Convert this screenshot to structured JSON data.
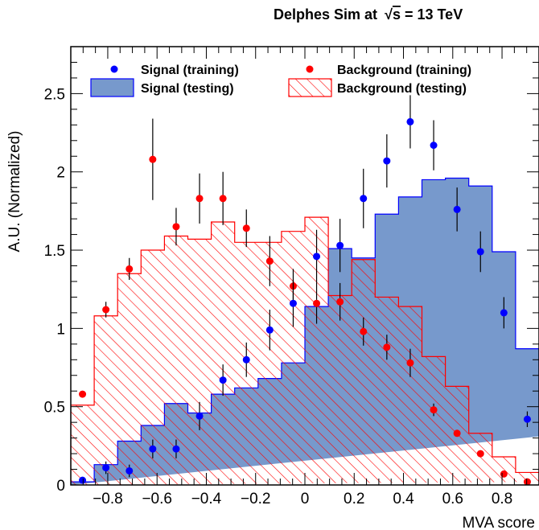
{
  "chart_data": {
    "type": "histogram",
    "title": "Delphes Sim at",
    "title_energy": "= 13 TeV",
    "xlabel": "MVA score",
    "ylabel": "A.U. (Normalized)",
    "xlim": [
      -0.95,
      0.95
    ],
    "ylim": [
      0,
      2.8
    ],
    "x_ticks": [
      -0.8,
      -0.6,
      -0.4,
      -0.2,
      0,
      0.2,
      0.4,
      0.6,
      0.8
    ],
    "x_tick_labels": [
      "−0.8",
      "−0.6",
      "−0.4",
      "−0.2",
      "0",
      "0.2",
      "0.4",
      "0.6",
      "0.8"
    ],
    "y_ticks": [
      0,
      0.5,
      1,
      1.5,
      2,
      2.5
    ],
    "y_tick_labels": [
      "0",
      "0.5",
      "1",
      "1.5",
      "2",
      "2.5"
    ],
    "legend": [
      "Signal (training)",
      "Background (training)",
      "Signal (testing)",
      "Background (testing)"
    ],
    "colors": {
      "signal": "#0000ff",
      "signal_fill": "#7799cc",
      "background": "#ff0000"
    },
    "bin_edges": [
      -0.95,
      -0.855,
      -0.76,
      -0.665,
      -0.57,
      -0.475,
      -0.38,
      -0.285,
      -0.19,
      -0.095,
      0,
      0.095,
      0.19,
      0.285,
      0.38,
      0.475,
      0.57,
      0.665,
      0.76,
      0.855,
      0.95
    ],
    "signal_testing": [
      0.02,
      0.13,
      0.28,
      0.38,
      0.52,
      0.46,
      0.58,
      0.62,
      0.68,
      0.78,
      1.14,
      1.51,
      1.45,
      1.73,
      1.84,
      1.95,
      1.96,
      1.91,
      1.49,
      0.87,
      0.31
    ],
    "background_testing": [
      0.51,
      1.08,
      1.35,
      1.5,
      1.59,
      1.57,
      1.68,
      1.55,
      1.55,
      1.62,
      1.71,
      1.21,
      1.44,
      1.2,
      1.14,
      0.82,
      0.63,
      0.33,
      0.18,
      0.08,
      0.02
    ],
    "signal_training": {
      "x": [
        -0.9025,
        -0.8075,
        -0.7125,
        -0.6175,
        -0.5225,
        -0.4275,
        -0.3325,
        -0.2375,
        -0.1425,
        -0.0475,
        0.0475,
        0.1425,
        0.2375,
        0.3325,
        0.4275,
        0.5225,
        0.6175,
        0.7125,
        0.8075,
        0.9025
      ],
      "y": [
        0.03,
        0.11,
        0.09,
        0.23,
        0.23,
        0.44,
        0.67,
        0.8,
        0.99,
        1.16,
        1.46,
        1.53,
        1.83,
        2.07,
        2.32,
        2.17,
        1.76,
        1.49,
        1.1,
        0.42
      ],
      "err": [
        0.02,
        0.04,
        0.04,
        0.06,
        0.06,
        0.09,
        0.1,
        0.11,
        0.13,
        0.15,
        0.17,
        0.17,
        0.19,
        0.17,
        0.17,
        0.16,
        0.14,
        0.13,
        0.1,
        0.05
      ]
    },
    "background_training": {
      "x": [
        -0.9025,
        -0.8075,
        -0.7125,
        -0.6175,
        -0.5225,
        -0.4275,
        -0.3325,
        -0.2375,
        -0.1425,
        -0.0475,
        0.0475,
        0.1425,
        0.2375,
        0.3325,
        0.4275,
        0.5225,
        0.6175,
        0.7125,
        0.8075,
        0.9025
      ],
      "y": [
        0.58,
        1.12,
        1.38,
        2.08,
        1.65,
        1.83,
        1.83,
        1.64,
        1.43,
        1.27,
        1.16,
        1.17,
        0.98,
        0.88,
        0.78,
        0.48,
        0.33,
        0.2,
        0.07,
        0.02
      ],
      "err": [
        0.02,
        0.05,
        0.07,
        0.26,
        0.12,
        0.16,
        0.17,
        0.12,
        0.16,
        0.11,
        0.13,
        0.12,
        0.09,
        0.08,
        0.09,
        0.04,
        0.02,
        0.01,
        0.01,
        0.01
      ]
    }
  }
}
